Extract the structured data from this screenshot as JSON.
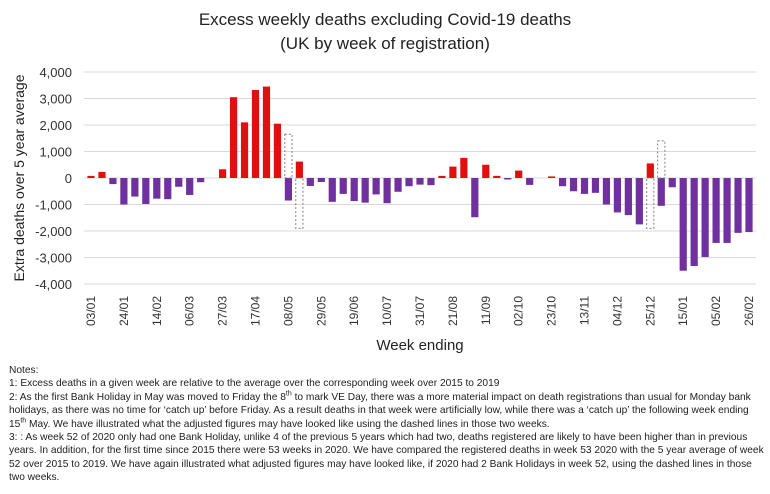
{
  "chart_data": {
    "type": "bar",
    "title": "Excess weekly deaths excluding Covid-19 deaths",
    "subtitle": "(UK by week of registration)",
    "xlabel": "Week ending",
    "ylabel": "Extra deaths over 5 year average",
    "ylim": [
      -4000,
      4000
    ],
    "yticks": [
      4000,
      3000,
      2000,
      1000,
      0,
      -1000,
      -2000,
      -3000,
      -4000
    ],
    "ytick_labels": [
      "4,000",
      "3,000",
      "2,000",
      "1,000",
      "0",
      "-1,000",
      "-2,000",
      "-3,000",
      "-4,000"
    ],
    "grid": true,
    "x_tick_every": 3,
    "x_tick_labels": [
      "03/01",
      "24/01",
      "14/02",
      "06/03",
      "27/03",
      "17/04",
      "08/05",
      "29/05",
      "19/06",
      "10/07",
      "31/07",
      "21/08",
      "11/09",
      "02/10",
      "23/10",
      "13/11",
      "04/12",
      "25/12",
      "15/01",
      "05/02",
      "26/02"
    ],
    "colors": {
      "positive": "#e01010",
      "negative": "#7030a0",
      "grid": "#d9d9d9",
      "dashed": "#7f7f7f"
    },
    "values": [
      80,
      230,
      -230,
      -1000,
      -700,
      -980,
      -780,
      -800,
      -330,
      -640,
      -160,
      0,
      330,
      3050,
      2100,
      3320,
      3450,
      2050,
      -850,
      620,
      -300,
      -150,
      -900,
      -600,
      -870,
      -930,
      -620,
      -950,
      -520,
      -310,
      -250,
      -270,
      80,
      430,
      760,
      -1480,
      500,
      80,
      -50,
      280,
      -260,
      0,
      60,
      -310,
      -500,
      -600,
      -560,
      -1000,
      -1300,
      -1400,
      -1750,
      550,
      -1050,
      -350,
      -3500,
      -3320,
      -2980,
      -2450,
      -2450,
      -2070,
      -2040
    ],
    "adjusted_dashed": [
      {
        "week_index": 18,
        "value": 1650
      },
      {
        "week_index": 19,
        "value": -1900
      },
      {
        "week_index": 51,
        "value": -1900
      },
      {
        "week_index": 52,
        "value": 1400
      }
    ]
  },
  "notes": {
    "heading": "Notes:",
    "items": [
      "1: Excess deaths in a given week are relative to the average over the corresponding week over 2015 to 2019",
      "2: As the first Bank Holiday in May was moved to Friday the 8th to mark VE Day, there was a more material impact on death registrations than usual for Monday bank holidays, as there was no time for ‘catch up’ before Friday. As a result deaths in that week were artificially low, while there was a ‘catch up’ the following week ending 15th May. We have illustrated what the adjusted figures may have looked like using the dashed lines in those two weeks.",
      "3: : As week 52 of 2020 only had one Bank Holiday, unlike 4 of the previous 5 years which had two, deaths registered are likely to have been higher than in previous years. In addition, for the first time since 2015 there were 53 weeks in 2020. We have compared the registered deaths in week 53 2020 with the 5 year average of week 52 over 2015 to 2019. We have again illustrated what adjusted figures may have looked like, if 2020 had 2 Bank Holidays in week 52, using the dashed lines in those two weeks."
    ]
  }
}
